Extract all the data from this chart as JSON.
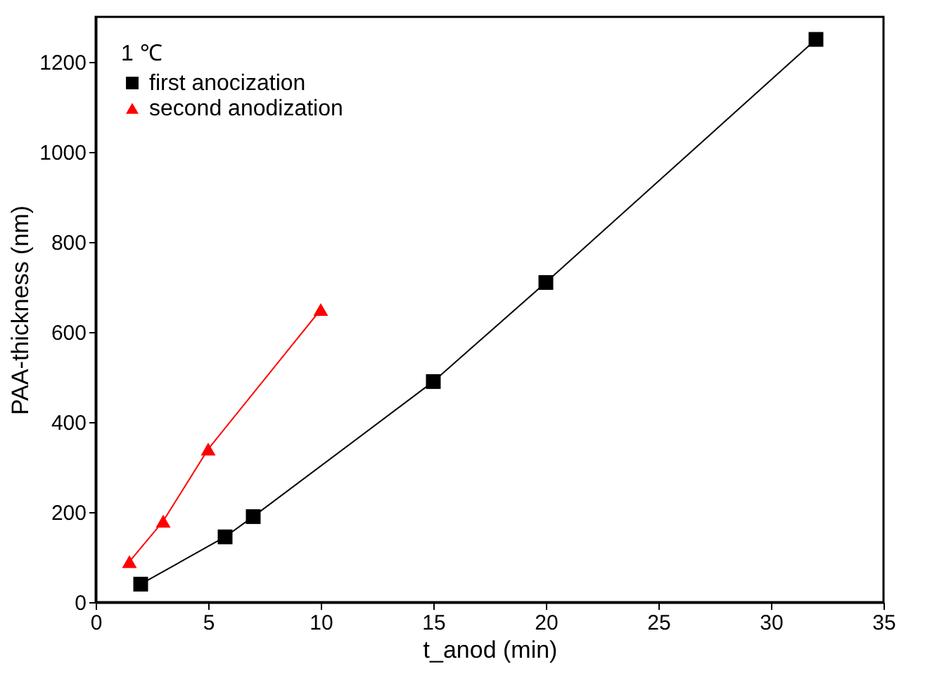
{
  "chart_data": {
    "type": "line",
    "xlabel": "t_anod (min)",
    "ylabel": "PAA-thickness (nm)",
    "legend_title": "1 ℃",
    "legend": "top left",
    "grid": false,
    "line_style": "solid",
    "xlim": [
      0,
      35
    ],
    "xticks": [
      0,
      5,
      10,
      15,
      20,
      25,
      30,
      35
    ],
    "ylim": [
      0,
      1300
    ],
    "yticks": [
      0,
      200,
      400,
      600,
      800,
      1000,
      1200
    ],
    "series": [
      {
        "name": "first anocization",
        "color": "#000000",
        "marker": "square",
        "x": [
          2,
          5.75,
          7,
          15,
          20,
          32
        ],
        "values": [
          40,
          145,
          190,
          490,
          710,
          1250
        ]
      },
      {
        "name": "second anodization",
        "color": "#ff0000",
        "marker": "triangle",
        "x": [
          1.5,
          3,
          5,
          10
        ],
        "values": [
          90,
          180,
          340,
          650
        ]
      }
    ]
  }
}
